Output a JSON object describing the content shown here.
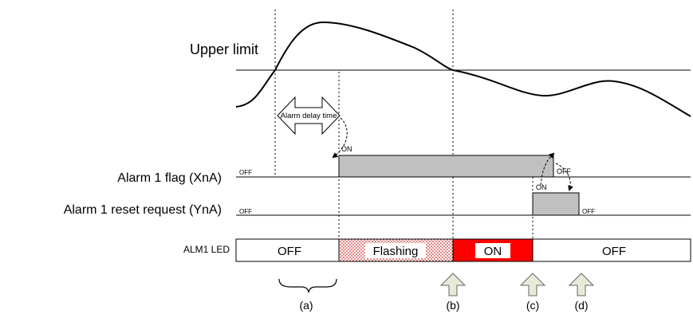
{
  "labels": {
    "upper_limit": "Upper limit",
    "alarm_delay": "Alarm delay time",
    "alarm_flag": "Alarm 1 flag (XnA)",
    "reset_request": "Alarm 1 reset request (YnA)",
    "led": "ALM1 LED"
  },
  "states": {
    "off": "OFF",
    "on": "ON"
  },
  "led_segments": {
    "off_1": "OFF",
    "flashing": "Flashing",
    "on": "ON",
    "off_2": "OFF"
  },
  "markers": {
    "a": "(a)",
    "b": "(b)",
    "c": "(c)",
    "d": "(d)"
  },
  "colors": {
    "flag_fill": "#c0c0c0",
    "led_on": "#ff0000",
    "flashing_dots": "#cc3333",
    "marker_arrow": "#e8ead9"
  }
}
